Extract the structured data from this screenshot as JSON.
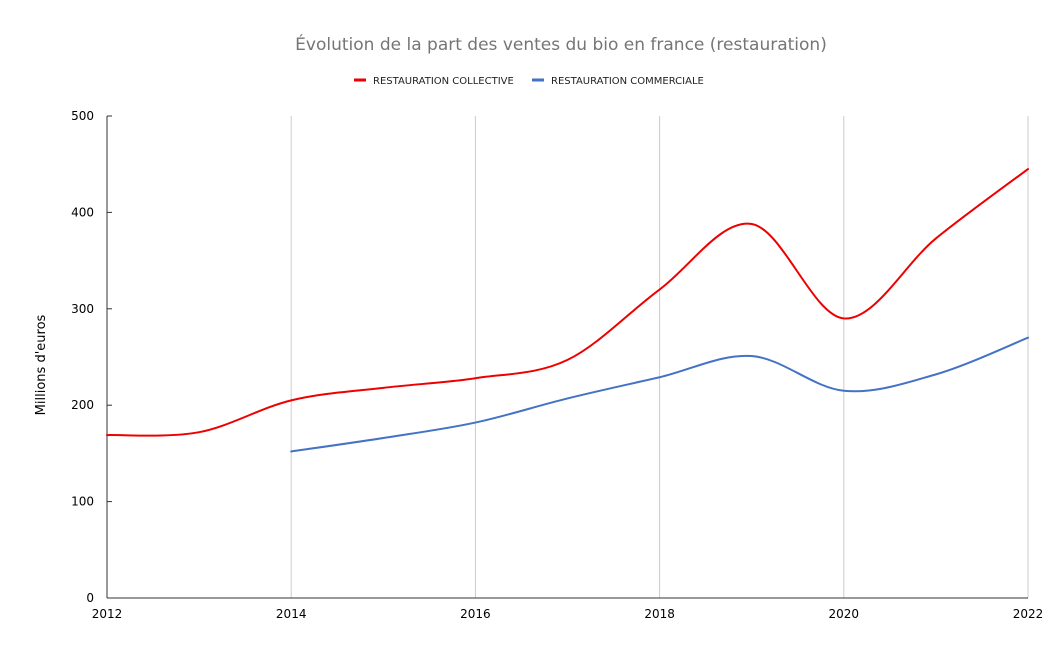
{
  "chart_data": {
    "type": "line",
    "title": "Évolution de la part des ventes du bio en france (restauration)",
    "xlabel": "",
    "ylabel": "Millions d'euros",
    "xlim": [
      2012,
      2022
    ],
    "ylim": [
      0,
      500
    ],
    "x_ticks": [
      "2012",
      "2014",
      "2016",
      "2018",
      "2020",
      "2022"
    ],
    "y_ticks": [
      "0",
      "100",
      "200",
      "300",
      "400",
      "500"
    ],
    "grid": "vertical",
    "legend_position": "top-center",
    "series": [
      {
        "name": "RESTAURATION COLLECTIVE",
        "color": "#ee0000",
        "x": [
          2012,
          2013,
          2014,
          2015,
          2016,
          2017,
          2018,
          2019,
          2020,
          2021,
          2022
        ],
        "values": [
          169,
          172,
          205,
          218,
          228,
          247,
          320,
          388,
          290,
          373,
          445
        ]
      },
      {
        "name": "RESTAURATION COMMERCIALE",
        "color": "#4472c4",
        "x": [
          2014,
          2015,
          2016,
          2017,
          2018,
          2019,
          2020,
          2021,
          2022
        ],
        "values": [
          152,
          166,
          182,
          207,
          229,
          251,
          215,
          232,
          270
        ]
      }
    ]
  }
}
